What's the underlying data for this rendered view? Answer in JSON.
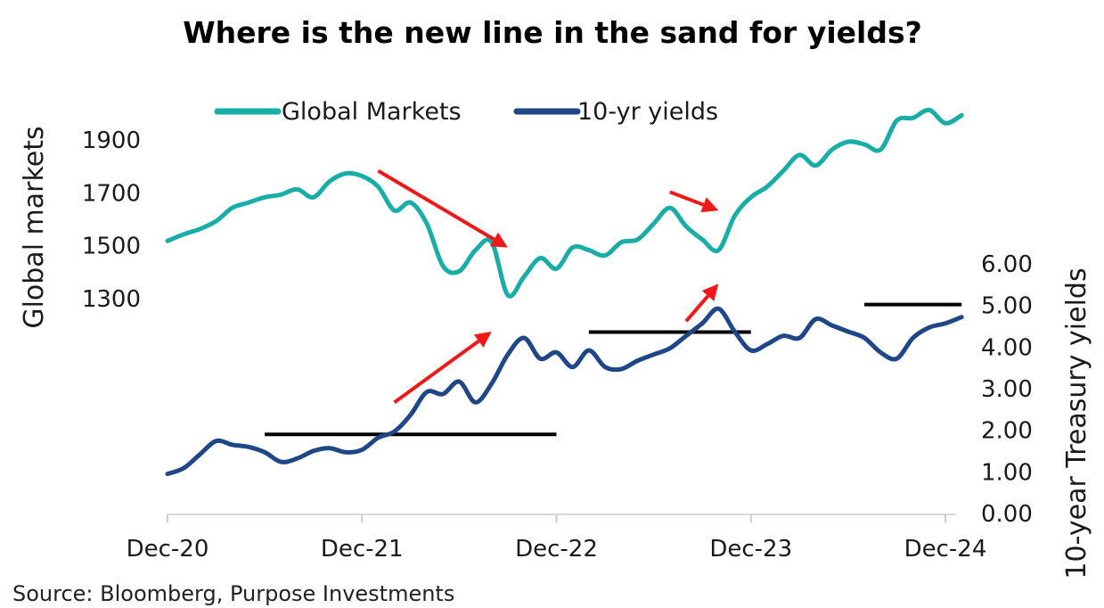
{
  "colors": {
    "global_markets": "#19ADA8",
    "yields": "#1F4788",
    "arrows": "#F01919",
    "threshold": "#000000"
  },
  "chart_data": {
    "type": "line",
    "title": "Where is the new line in the sand for yields?",
    "source": "Source: Bloomberg, Purpose Investments",
    "legend_position": "top-center",
    "grid": false,
    "x_axis": {
      "ticks": [
        "Dec-20",
        "Dec-21",
        "Dec-22",
        "Dec-23",
        "Dec-24"
      ],
      "range": [
        "2020-12",
        "2025-01"
      ]
    },
    "y_left": {
      "label": "Global markets",
      "ticks": [
        1300,
        1500,
        1700,
        1900
      ],
      "range": [
        1300,
        1900
      ]
    },
    "y_right": {
      "label": "10-year Treasury yields",
      "ticks": [
        "0.00",
        "1.00",
        "2.00",
        "3.00",
        "4.00",
        "5.00",
        "6.00"
      ],
      "range": [
        0,
        6
      ]
    },
    "series": [
      {
        "name": "Global Markets",
        "axis": "left",
        "points": [
          [
            "2020-12",
            1515
          ],
          [
            "2021-01",
            1540
          ],
          [
            "2021-02",
            1560
          ],
          [
            "2021-03",
            1590
          ],
          [
            "2021-04",
            1640
          ],
          [
            "2021-05",
            1660
          ],
          [
            "2021-06",
            1680
          ],
          [
            "2021-07",
            1690
          ],
          [
            "2021-08",
            1710
          ],
          [
            "2021-09",
            1680
          ],
          [
            "2021-10",
            1740
          ],
          [
            "2021-11",
            1770
          ],
          [
            "2021-12",
            1760
          ],
          [
            "2022-01",
            1720
          ],
          [
            "2022-02",
            1630
          ],
          [
            "2022-03",
            1660
          ],
          [
            "2022-04",
            1580
          ],
          [
            "2022-05",
            1420
          ],
          [
            "2022-06",
            1400
          ],
          [
            "2022-07",
            1480
          ],
          [
            "2022-08",
            1510
          ],
          [
            "2022-09",
            1310
          ],
          [
            "2022-10",
            1380
          ],
          [
            "2022-11",
            1450
          ],
          [
            "2022-12",
            1410
          ],
          [
            "2023-01",
            1490
          ],
          [
            "2023-02",
            1480
          ],
          [
            "2023-03",
            1460
          ],
          [
            "2023-04",
            1510
          ],
          [
            "2023-05",
            1520
          ],
          [
            "2023-06",
            1580
          ],
          [
            "2023-07",
            1640
          ],
          [
            "2023-08",
            1570
          ],
          [
            "2023-09",
            1520
          ],
          [
            "2023-10",
            1480
          ],
          [
            "2023-11",
            1610
          ],
          [
            "2023-12",
            1680
          ],
          [
            "2024-01",
            1720
          ],
          [
            "2024-02",
            1780
          ],
          [
            "2024-03",
            1840
          ],
          [
            "2024-04",
            1800
          ],
          [
            "2024-05",
            1860
          ],
          [
            "2024-06",
            1890
          ],
          [
            "2024-07",
            1880
          ],
          [
            "2024-08",
            1860
          ],
          [
            "2024-09",
            1970
          ],
          [
            "2024-10",
            1980
          ],
          [
            "2024-11",
            2010
          ],
          [
            "2024-12",
            1960
          ],
          [
            "2025-01",
            1990
          ]
        ]
      },
      {
        "name": "10-yr yields",
        "axis": "right",
        "points": [
          [
            "2020-12",
            0.93
          ],
          [
            "2021-01",
            1.07
          ],
          [
            "2021-02",
            1.4
          ],
          [
            "2021-03",
            1.72
          ],
          [
            "2021-04",
            1.63
          ],
          [
            "2021-05",
            1.58
          ],
          [
            "2021-06",
            1.45
          ],
          [
            "2021-07",
            1.22
          ],
          [
            "2021-08",
            1.3
          ],
          [
            "2021-09",
            1.48
          ],
          [
            "2021-10",
            1.55
          ],
          [
            "2021-11",
            1.45
          ],
          [
            "2021-12",
            1.51
          ],
          [
            "2022-01",
            1.8
          ],
          [
            "2022-02",
            1.95
          ],
          [
            "2022-03",
            2.35
          ],
          [
            "2022-04",
            2.9
          ],
          [
            "2022-05",
            2.85
          ],
          [
            "2022-06",
            3.15
          ],
          [
            "2022-07",
            2.65
          ],
          [
            "2022-08",
            3.1
          ],
          [
            "2022-09",
            3.8
          ],
          [
            "2022-10",
            4.2
          ],
          [
            "2022-11",
            3.7
          ],
          [
            "2022-12",
            3.85
          ],
          [
            "2023-01",
            3.5
          ],
          [
            "2023-02",
            3.9
          ],
          [
            "2023-03",
            3.5
          ],
          [
            "2023-04",
            3.45
          ],
          [
            "2023-05",
            3.65
          ],
          [
            "2023-06",
            3.8
          ],
          [
            "2023-07",
            3.95
          ],
          [
            "2023-08",
            4.25
          ],
          [
            "2023-09",
            4.55
          ],
          [
            "2023-10",
            4.9
          ],
          [
            "2023-11",
            4.35
          ],
          [
            "2023-12",
            3.9
          ],
          [
            "2024-01",
            4.05
          ],
          [
            "2024-02",
            4.25
          ],
          [
            "2024-03",
            4.2
          ],
          [
            "2024-04",
            4.65
          ],
          [
            "2024-05",
            4.5
          ],
          [
            "2024-06",
            4.35
          ],
          [
            "2024-07",
            4.2
          ],
          [
            "2024-08",
            3.85
          ],
          [
            "2024-09",
            3.7
          ],
          [
            "2024-10",
            4.2
          ],
          [
            "2024-11",
            4.45
          ],
          [
            "2024-12",
            4.55
          ],
          [
            "2025-01",
            4.7
          ]
        ]
      }
    ],
    "threshold_lines": [
      {
        "axis": "right",
        "y": 1.88,
        "x_start": "2021-06",
        "x_end": "2022-12"
      },
      {
        "axis": "right",
        "y": 4.34,
        "x_start": "2023-02",
        "x_end": "2023-12"
      },
      {
        "axis": "right",
        "y": 5.0,
        "x_start": "2024-07",
        "x_end": "2025-01"
      }
    ],
    "arrows": [
      {
        "from": [
          "2022-01",
          1780
        ],
        "to": [
          "2022-09",
          1490
        ],
        "axis": "left"
      },
      {
        "from": [
          "2023-07",
          1700
        ],
        "to": [
          "2023-10",
          1630
        ],
        "axis": "left"
      },
      {
        "from": [
          "2022-02",
          2.65
        ],
        "to": [
          "2022-08",
          4.35
        ],
        "axis": "right"
      },
      {
        "from": [
          "2023-08",
          4.6
        ],
        "to": [
          "2023-10",
          5.5
        ],
        "axis": "right"
      }
    ]
  }
}
